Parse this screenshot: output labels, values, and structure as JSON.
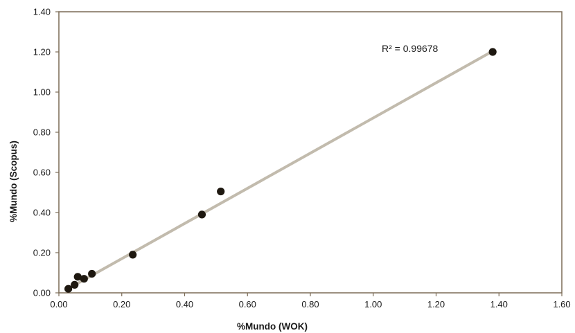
{
  "chart_data": {
    "type": "scatter",
    "title": "",
    "xlabel": "%Mundo (WOK)",
    "ylabel": "%Mundo (Scopus)",
    "xlim": [
      0,
      1.6
    ],
    "ylim": [
      0,
      1.4
    ],
    "x_ticks": [
      "0.00",
      "0.20",
      "0.40",
      "0.60",
      "0.80",
      "1.00",
      "1.20",
      "1.40",
      "1.60"
    ],
    "y_ticks": [
      "0.00",
      "0.20",
      "0.40",
      "0.60",
      "0.80",
      "1.00",
      "1.20",
      "1.40"
    ],
    "grid": false,
    "legend": "none",
    "series": [
      {
        "points": [
          {
            "x": 0.03,
            "y": 0.02
          },
          {
            "x": 0.05,
            "y": 0.04
          },
          {
            "x": 0.06,
            "y": 0.08
          },
          {
            "x": 0.08,
            "y": 0.07
          },
          {
            "x": 0.105,
            "y": 0.095
          },
          {
            "x": 0.235,
            "y": 0.19
          },
          {
            "x": 0.455,
            "y": 0.39
          },
          {
            "x": 0.515,
            "y": 0.505
          },
          {
            "x": 1.38,
            "y": 1.2
          }
        ]
      }
    ],
    "trendline": {
      "type": "linear",
      "x_start": 0.03,
      "x_end": 1.38,
      "slope": 0.876,
      "intercept": -0.005
    },
    "annotation": "R² = 0.99678",
    "colors": {
      "point": "#1e1810",
      "trendline": "#c2bbad",
      "axis": "#7a6a55"
    }
  }
}
